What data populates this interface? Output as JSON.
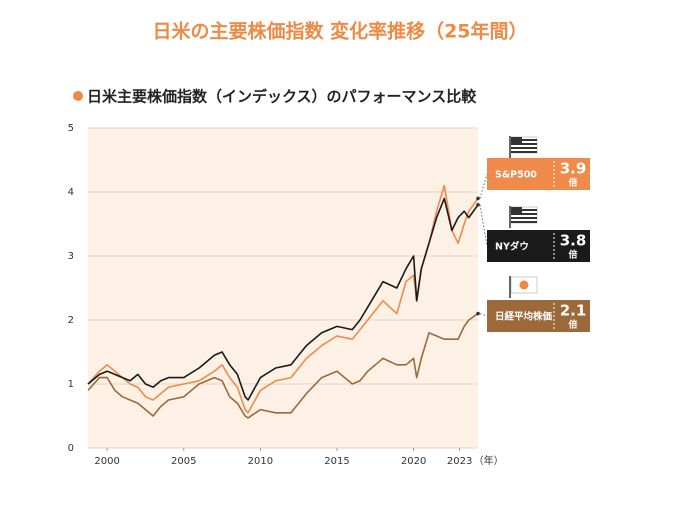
{
  "chart_data": {
    "type": "line",
    "title": "日米の主要株価指数 変化率推移（25年間）",
    "subtitle": "日米主要株価指数（インデックス）のパフォーマンス比較",
    "x_unit": "（年）",
    "x": [
      1998.75,
      1999.5,
      2000,
      2000.5,
      2001,
      2001.5,
      2002,
      2002.5,
      2003,
      2003.5,
      2004,
      2005,
      2006,
      2007,
      2007.5,
      2008,
      2008.5,
      2009,
      2009.2,
      2010,
      2011,
      2012,
      2013,
      2014,
      2015,
      2016,
      2016.5,
      2017,
      2018,
      2018.9,
      2019.5,
      2020,
      2020.2,
      2020.5,
      2021,
      2021.5,
      2022,
      2022.5,
      2022.9,
      2023.3,
      2023.6,
      2024.2
    ],
    "series": [
      {
        "name": "S&P500",
        "color": "#f08a4b",
        "end_value": 3.9,
        "end_unit": "倍",
        "values": [
          1.0,
          1.2,
          1.3,
          1.2,
          1.1,
          1.0,
          0.95,
          0.8,
          0.75,
          0.85,
          0.95,
          1.0,
          1.05,
          1.2,
          1.3,
          1.1,
          0.95,
          0.6,
          0.55,
          0.9,
          1.05,
          1.1,
          1.4,
          1.6,
          1.75,
          1.7,
          1.85,
          2.0,
          2.3,
          2.1,
          2.6,
          2.7,
          2.3,
          2.8,
          3.2,
          3.7,
          4.1,
          3.4,
          3.2,
          3.5,
          3.7,
          3.9
        ]
      },
      {
        "name": "NYダウ",
        "color": "#1a1a1a",
        "end_value": 3.8,
        "end_unit": "倍",
        "values": [
          1.0,
          1.15,
          1.2,
          1.15,
          1.1,
          1.05,
          1.15,
          1.0,
          0.95,
          1.05,
          1.1,
          1.1,
          1.25,
          1.45,
          1.5,
          1.3,
          1.15,
          0.8,
          0.75,
          1.1,
          1.25,
          1.3,
          1.6,
          1.8,
          1.9,
          1.85,
          2.0,
          2.2,
          2.6,
          2.5,
          2.8,
          3.0,
          2.3,
          2.8,
          3.2,
          3.6,
          3.9,
          3.4,
          3.6,
          3.7,
          3.6,
          3.8
        ]
      },
      {
        "name": "日経平均株価",
        "color": "#9c6a3a",
        "end_value": 2.1,
        "end_unit": "倍",
        "values": [
          0.9,
          1.1,
          1.1,
          0.9,
          0.8,
          0.75,
          0.7,
          0.6,
          0.5,
          0.65,
          0.75,
          0.8,
          1.0,
          1.1,
          1.05,
          0.8,
          0.7,
          0.5,
          0.47,
          0.6,
          0.55,
          0.55,
          0.85,
          1.1,
          1.2,
          1.0,
          1.05,
          1.2,
          1.4,
          1.3,
          1.3,
          1.4,
          1.1,
          1.4,
          1.8,
          1.75,
          1.7,
          1.7,
          1.7,
          1.9,
          2.0,
          2.1
        ]
      }
    ],
    "xlim": [
      1998.75,
      2024.2
    ],
    "xticks": [
      2000,
      2005,
      2010,
      2015,
      2020,
      2023
    ],
    "ylim": [
      0,
      5
    ],
    "yticks": [
      0,
      1,
      2,
      3,
      4,
      5
    ],
    "grid": true,
    "background": "#fdf1e6"
  }
}
